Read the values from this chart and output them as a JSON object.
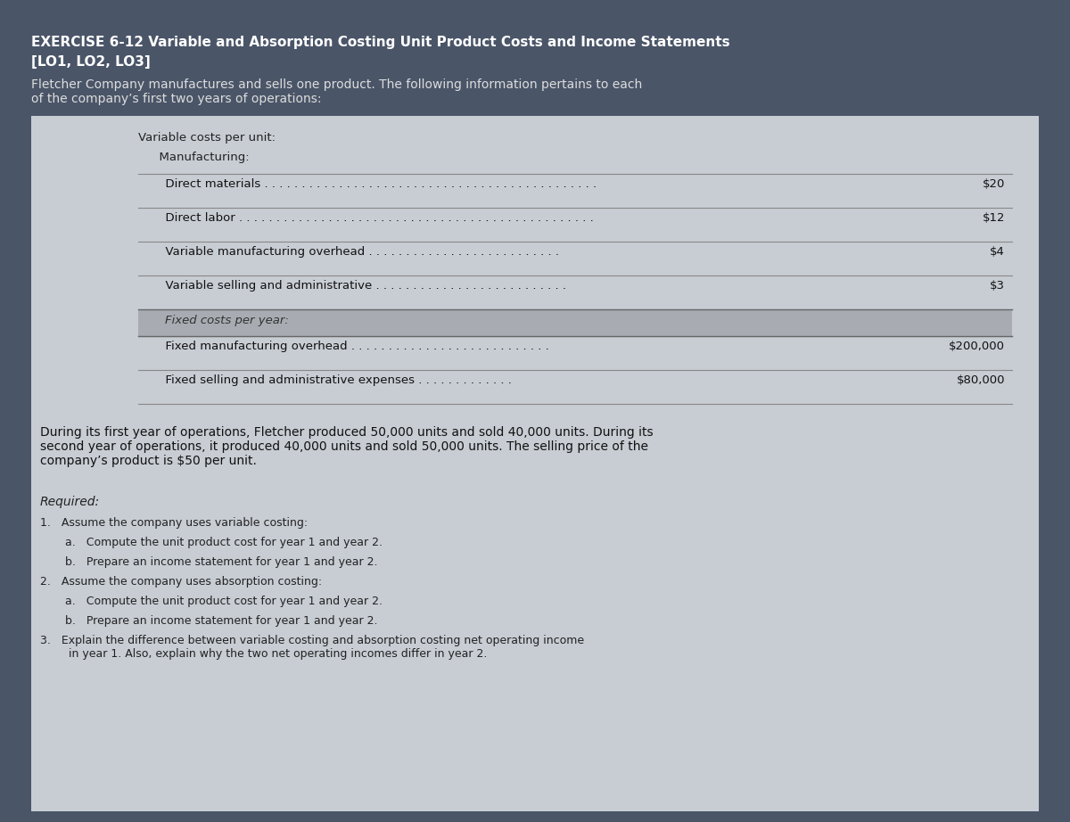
{
  "bg_color": "#4a5568",
  "panel_bg": "#c8cdd4",
  "table_inner_bg": "#c0c5cc",
  "fixed_header_bg": "#a8acb2",
  "title_bg": "#4a5568",
  "title_line1": "EXERCISE 6-12 Variable and Absorption Costing Unit Product Costs and Income Statements",
  "title_line2": "[LO1, LO2, LO3]",
  "intro_text": "Fletcher Company manufactures and sells one product. The following information pertains to each\nof the company’s first two years of operations:",
  "var_header1": "Variable costs per unit:",
  "var_header2": "  Manufacturing:",
  "table_rows": [
    [
      "      Direct materials . . . . . . . . . . . . . . . . . . . . . . . . . . . . . . . . . . . . . . . . . . . . .",
      "$20"
    ],
    [
      "      Direct labor . . . . . . . . . . . . . . . . . . . . . . . . . . . . . . . . . . . . . . . . . . . . . . . .",
      "$12"
    ],
    [
      "      Variable manufacturing overhead . . . . . . . . . . . . . . . . . . . . . . . . . .",
      "$4"
    ],
    [
      "      Variable selling and administrative . . . . . . . . . . . . . . . . . . . . . . . . . .",
      "$3"
    ]
  ],
  "fixed_header": "Fixed costs per year:",
  "fixed_rows": [
    [
      "      Fixed manufacturing overhead . . . . . . . . . . . . . . . . . . . . . . . . . . .",
      "$200,000"
    ],
    [
      "      Fixed selling and administrative expenses . . . . . . . . . . . . .",
      "$80,000"
    ]
  ],
  "operations_text": "During its first year of operations, Fletcher produced 50,000 units and sold 40,000 units. During its\nsecond year of operations, it produced 40,000 units and sold 50,000 units. The selling price of the\ncompany’s product is $50 per unit.",
  "required_label": "Required:",
  "required_items": [
    {
      "indent": 0,
      "text": "1.   Assume the company uses variable costing:"
    },
    {
      "indent": 1,
      "text": "a.   Compute the unit product cost for year 1 and year 2."
    },
    {
      "indent": 1,
      "text": "b.   Prepare an income statement for year 1 and year 2."
    },
    {
      "indent": 0,
      "text": "2.   Assume the company uses absorption costing:"
    },
    {
      "indent": 1,
      "text": "a.   Compute the unit product cost for year 1 and year 2."
    },
    {
      "indent": 1,
      "text": "b.   Prepare an income statement for year 1 and year 2."
    },
    {
      "indent": 0,
      "text": "3.   Explain the difference between variable costing and absorption costing net operating income\n        in year 1. Also, explain why the two net operating incomes differ in year 2."
    }
  ],
  "title_fontsize": 11,
  "body_fontsize": 10,
  "table_fontsize": 9.5,
  "small_fontsize": 9
}
